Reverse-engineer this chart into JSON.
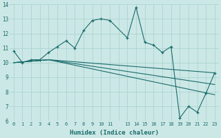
{
  "xlabel": "Humidex (Indice chaleur)",
  "bg_color": "#cce8e6",
  "line_color": "#1a6b6b",
  "grid_color": "#aad4d0",
  "xlim": [
    -0.5,
    23.5
  ],
  "ylim": [
    6,
    14
  ],
  "yticks": [
    6,
    7,
    8,
    9,
    10,
    11,
    12,
    13,
    14
  ],
  "lines": [
    {
      "x": [
        0,
        1,
        2,
        3,
        4,
        5,
        6,
        7,
        8,
        9,
        10,
        11,
        13,
        14,
        15,
        16,
        17,
        18,
        19,
        20,
        21,
        22,
        23
      ],
      "y": [
        10.8,
        10.0,
        10.2,
        10.2,
        10.7,
        11.1,
        11.5,
        11.0,
        12.2,
        12.9,
        13.0,
        12.9,
        11.7,
        13.8,
        11.4,
        11.2,
        10.7,
        11.1,
        6.2,
        7.0,
        6.6,
        7.9,
        9.3
      ],
      "markers": true
    },
    {
      "x": [
        0,
        4,
        23
      ],
      "y": [
        10.0,
        10.2,
        9.3
      ],
      "markers": false
    },
    {
      "x": [
        0,
        4,
        23
      ],
      "y": [
        10.0,
        10.2,
        8.5
      ],
      "markers": false
    },
    {
      "x": [
        0,
        4,
        23
      ],
      "y": [
        10.0,
        10.2,
        7.8
      ],
      "markers": false
    }
  ],
  "xtick_labels": [
    "0",
    "1",
    "2",
    "3",
    "4",
    "5",
    "6",
    "7",
    "8",
    "9",
    "10",
    "11",
    "",
    "13",
    "14",
    "15",
    "16",
    "17",
    "18",
    "19",
    "20",
    "21",
    "22",
    "23"
  ],
  "xtick_positions": [
    0,
    1,
    2,
    3,
    4,
    5,
    6,
    7,
    8,
    9,
    10,
    11,
    12,
    13,
    14,
    15,
    16,
    17,
    18,
    19,
    20,
    21,
    22,
    23
  ]
}
